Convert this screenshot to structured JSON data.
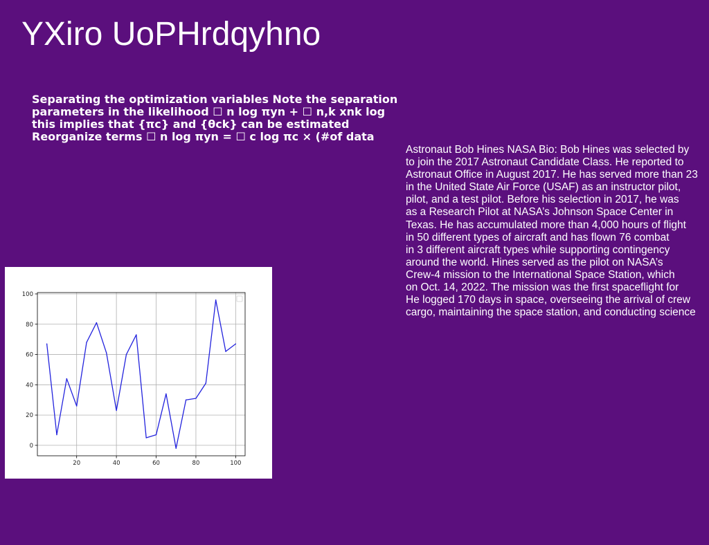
{
  "page": {
    "background": "#5b0f7d",
    "title": "YXiro UoPHrdqyhno"
  },
  "bold_text": {
    "lines": [
      "Separating the optimization variables Note the separation",
      "parameters in the likelihood ☐ n log πyn + ☐ n,k xnk log",
      "this implies that {πc} and {θck} can be estimated",
      "Reorganize terms ☐ n log πyn = ☐ c log πc × (#of data"
    ]
  },
  "bio": {
    "lines": [
      "Astronaut Bob Hines NASA Bio: Bob Hines was selected by",
      "to join the 2017 Astronaut Candidate Class. He reported to",
      "Astronaut Office in August 2017. He has served more than 23",
      "in the United State Air Force (USAF) as an instructor pilot,",
      "pilot, and a test pilot. Before his selection in 2017, he was",
      "as a Research Pilot at NASA’s Johnson Space Center in",
      "Texas. He has accumulated more than 4,000 hours of flight",
      "in 50 different types of aircraft and has flown 76 combat",
      "in 3 different aircraft types while supporting contingency",
      "around the world. Hines served as the pilot on NASA’s",
      "Crew-4 mission to the International Space Station, which",
      "on Oct. 14, 2022. The mission was the first spaceflight for",
      "He logged 170 days in space, overseeing the arrival of crew",
      "cargo, maintaining the space station, and conducting science"
    ]
  },
  "chart_data": {
    "type": "line",
    "title": "",
    "xlabel": "",
    "ylabel": "",
    "x": [
      5,
      10,
      15,
      20,
      25,
      30,
      35,
      40,
      45,
      50,
      55,
      60,
      65,
      70,
      75,
      80,
      85,
      90,
      95,
      100
    ],
    "series": [
      {
        "values": [
          67,
          7,
          44,
          26,
          68,
          81,
          61,
          23,
          60,
          73,
          5,
          7,
          34,
          -2,
          30,
          31,
          41,
          96,
          62,
          67
        ],
        "color": "#2222dd"
      }
    ],
    "xlim": [
      0.25,
      104.75
    ],
    "ylim": [
      -6.9,
      100.9
    ],
    "xticks": [
      20,
      40,
      60,
      80,
      100
    ],
    "yticks": [
      0,
      20,
      40,
      60,
      80,
      100
    ],
    "grid": true,
    "legend": "top-right",
    "background": "#ffffff",
    "grid_color": "#b0b0b0"
  }
}
